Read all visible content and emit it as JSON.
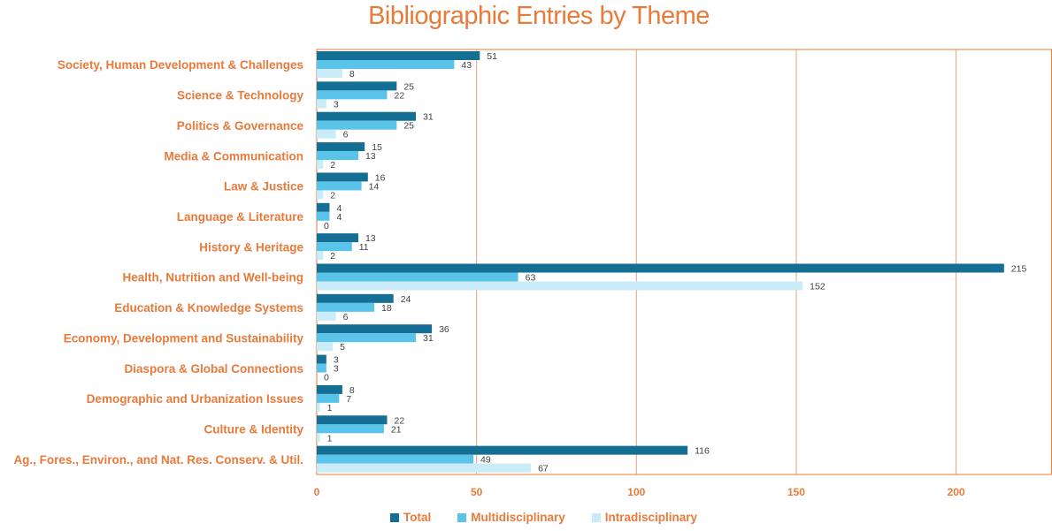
{
  "chart_data": {
    "type": "bar",
    "orientation": "horizontal",
    "title": "Bibliographic Entries by Theme",
    "categories": [
      "Society, Human Development & Challenges",
      "Science & Technology",
      "Politics & Governance",
      "Media & Communication",
      "Law & Justice",
      "Language & Literature",
      "History & Heritage",
      "Health, Nutrition and Well-being",
      "Education & Knowledge Systems",
      "Economy, Development and Sustainability",
      "Diaspora & Global Connections",
      "Demographic and Urbanization Issues",
      "Culture & Identity",
      "Ag., Fores., Environ., and Nat. Res. Conserv. & Util."
    ],
    "series": [
      {
        "name": "Total",
        "color": "#156e93",
        "values": [
          51,
          25,
          31,
          15,
          16,
          4,
          13,
          215,
          24,
          36,
          3,
          8,
          22,
          116
        ]
      },
      {
        "name": "Multidisciplinary",
        "color": "#59c3ea",
        "values": [
          43,
          22,
          25,
          13,
          14,
          4,
          11,
          63,
          18,
          31,
          3,
          7,
          21,
          49
        ]
      },
      {
        "name": "Intradisciplinary",
        "color": "#c9ecf8",
        "values": [
          8,
          3,
          6,
          2,
          2,
          0,
          2,
          152,
          6,
          5,
          0,
          1,
          1,
          67
        ]
      }
    ],
    "xlim": [
      0,
      230
    ],
    "xticks": [
      0,
      50,
      100,
      150,
      200
    ],
    "grid": "vertical",
    "legend_position": "bottom",
    "colors": {
      "text": "#e87a3a",
      "axis": "#e87a3a",
      "grid": "#e8a27a"
    }
  }
}
